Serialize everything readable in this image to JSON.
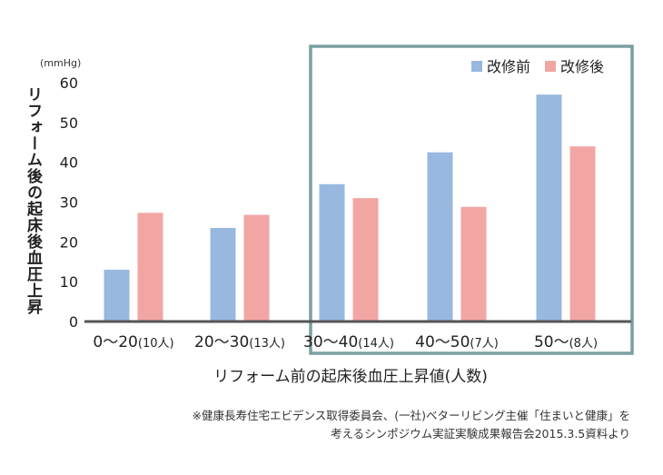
{
  "chart_data": {
    "type": "bar",
    "categories": [
      {
        "main": "0〜20",
        "sub": "(10人)"
      },
      {
        "main": "20〜30",
        "sub": "(13人)"
      },
      {
        "main": "30〜40",
        "sub": "(14人)"
      },
      {
        "main": "40〜50",
        "sub": "(7人)"
      },
      {
        "main": "50〜",
        "sub": "(8人)"
      }
    ],
    "series": [
      {
        "name": "改修前",
        "color": "#98b8e0",
        "values": [
          13,
          23.5,
          34.5,
          42.5,
          57
        ]
      },
      {
        "name": "改修後",
        "color": "#f2a6a4",
        "values": [
          27.3,
          26.8,
          31,
          28.8,
          44
        ]
      }
    ],
    "ylim": [
      0,
      60
    ],
    "yticks": [
      0,
      10,
      20,
      30,
      40,
      50,
      60
    ],
    "unit": "(mmHg)",
    "ylabel": "リフォーム後の起床後血圧上昇",
    "xlabel": "リフォーム前の起床後血圧上昇値(人数)",
    "legend_position": "top-right",
    "highlight_color": "#7a9f9f",
    "grid": false
  },
  "note": {
    "line1": "※健康長寿住宅エビデンス取得委員会、(一社)ベターリビング主催「住まいと健康」を",
    "line2": "考えるシンポジウム実証実験成果報告会2015.3.5資料より"
  }
}
